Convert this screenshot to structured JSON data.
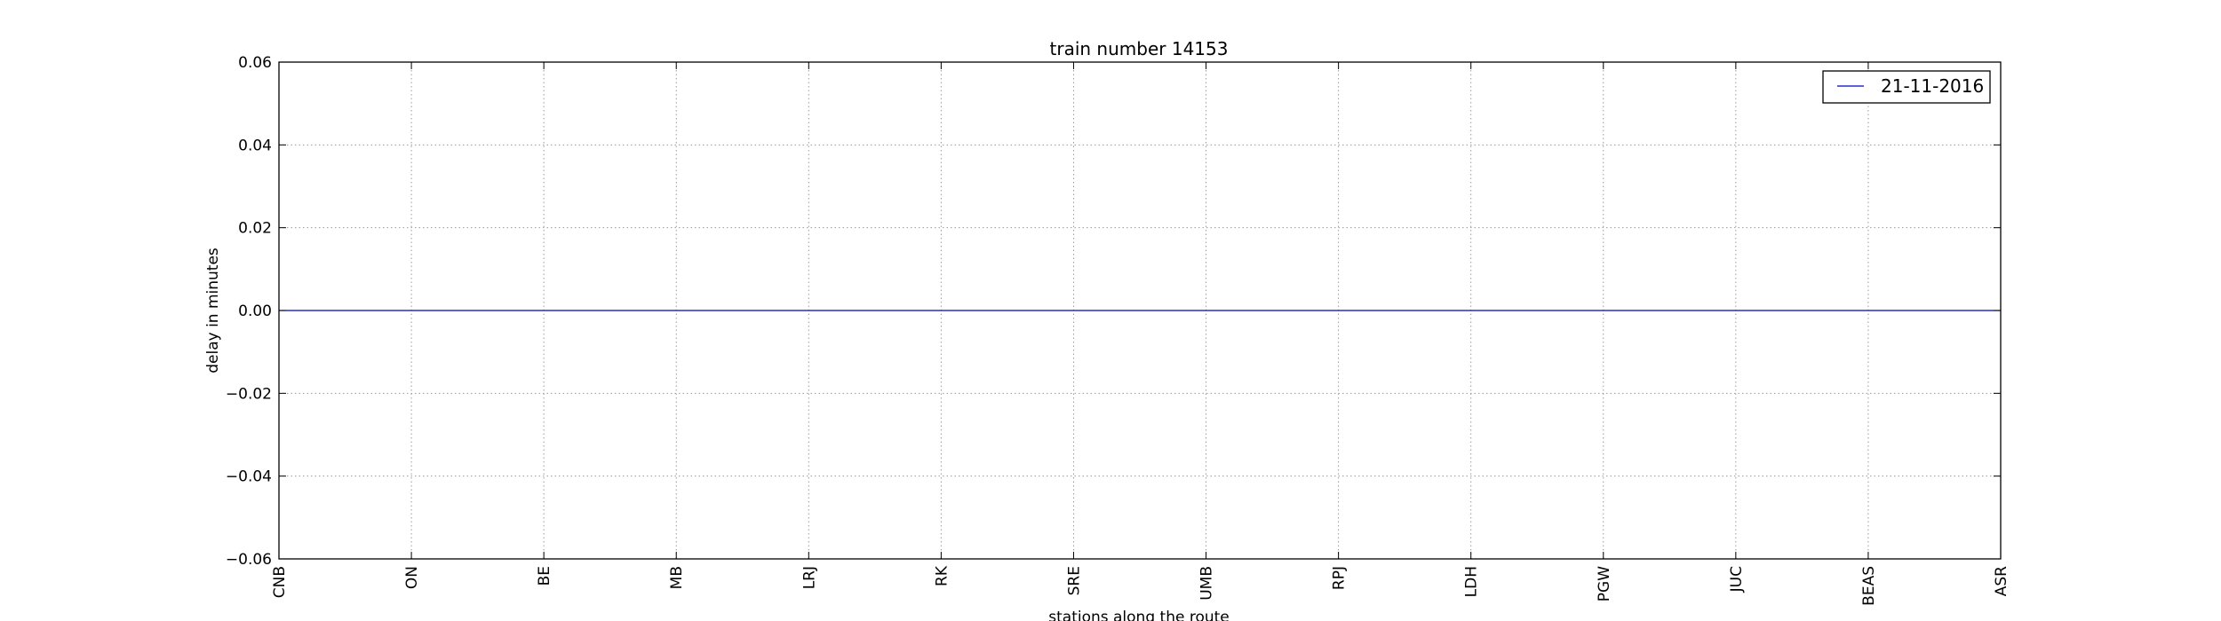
{
  "chart_data": {
    "type": "line",
    "title": "train number 14153",
    "xlabel": "stations along the route",
    "ylabel": "delay in minutes",
    "categories": [
      "CNB",
      "ON",
      "BE",
      "MB",
      "LRJ",
      "RK",
      "SRE",
      "UMB",
      "RPJ",
      "LDH",
      "PGW",
      "JUC",
      "BEAS",
      "ASR"
    ],
    "series": [
      {
        "name": "21-11-2016",
        "values": [
          0,
          0,
          0,
          0,
          0,
          0,
          0,
          0,
          0,
          0,
          0,
          0,
          0,
          0
        ],
        "color": "#0000bf"
      }
    ],
    "ylim": [
      -0.06,
      0.06
    ],
    "yticks": [
      "0.06",
      "0.04",
      "0.02",
      "0.00",
      "−0.02",
      "−0.04",
      "−0.06"
    ],
    "grid": true,
    "legend_position": "top-right"
  }
}
